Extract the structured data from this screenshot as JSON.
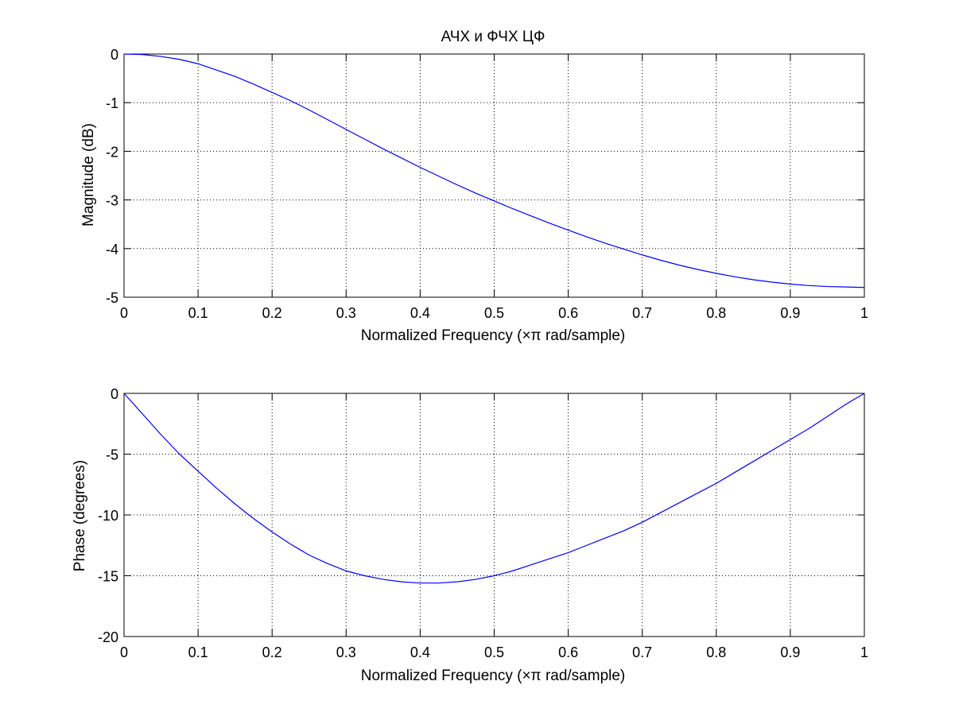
{
  "chart_data": [
    {
      "type": "line",
      "title": "АЧХ и ФЧХ ЦФ",
      "xlabel": "Normalized Frequency  (×π rad/sample)",
      "ylabel": "Magnitude (dB)",
      "xlim": [
        0,
        1
      ],
      "ylim": [
        -5,
        0
      ],
      "xticks": [
        0,
        0.1,
        0.2,
        0.3,
        0.4,
        0.5,
        0.6,
        0.7,
        0.8,
        0.9,
        1
      ],
      "xtick_labels": [
        "0",
        "0.1",
        "0.2",
        "0.3",
        "0.4",
        "0.5",
        "0.6",
        "0.7",
        "0.8",
        "0.9",
        "1"
      ],
      "yticks": [
        0,
        -1,
        -2,
        -3,
        -4,
        -5
      ],
      "ytick_labels": [
        "0",
        "-1",
        "-2",
        "-3",
        "-4",
        "-5"
      ],
      "grid": true,
      "color": "#0000ff",
      "series": [
        {
          "x": [
            0,
            0.025,
            0.05,
            0.075,
            0.1,
            0.125,
            0.15,
            0.175,
            0.2,
            0.225,
            0.25,
            0.275,
            0.3,
            0.325,
            0.35,
            0.375,
            0.4,
            0.425,
            0.45,
            0.475,
            0.5,
            0.525,
            0.55,
            0.575,
            0.6,
            0.625,
            0.65,
            0.675,
            0.7,
            0.725,
            0.75,
            0.775,
            0.8,
            0.825,
            0.85,
            0.875,
            0.9,
            0.925,
            0.95,
            0.975,
            1
          ],
          "values": [
            0,
            -0.01,
            -0.05,
            -0.11,
            -0.2,
            -0.33,
            -0.46,
            -0.62,
            -0.79,
            -0.96,
            -1.15,
            -1.35,
            -1.55,
            -1.75,
            -1.95,
            -2.14,
            -2.33,
            -2.51,
            -2.69,
            -2.86,
            -3.02,
            -3.18,
            -3.33,
            -3.48,
            -3.62,
            -3.76,
            -3.89,
            -4.01,
            -4.13,
            -4.24,
            -4.34,
            -4.43,
            -4.51,
            -4.58,
            -4.64,
            -4.69,
            -4.73,
            -4.76,
            -4.78,
            -4.79,
            -4.8
          ]
        }
      ]
    },
    {
      "type": "line",
      "title": "",
      "xlabel": "Normalized Frequency  (×π rad/sample)",
      "ylabel": "Phase (degrees)",
      "xlim": [
        0,
        1
      ],
      "ylim": [
        -20,
        0
      ],
      "xticks": [
        0,
        0.1,
        0.2,
        0.3,
        0.4,
        0.5,
        0.6,
        0.7,
        0.8,
        0.9,
        1
      ],
      "xtick_labels": [
        "0",
        "0.1",
        "0.2",
        "0.3",
        "0.4",
        "0.5",
        "0.6",
        "0.7",
        "0.8",
        "0.9",
        "1"
      ],
      "yticks": [
        0,
        -5,
        -10,
        -15,
        -20
      ],
      "ytick_labels": [
        "0",
        "-5",
        "-10",
        "-15",
        "-20"
      ],
      "grid": true,
      "color": "#0000ff",
      "series": [
        {
          "x": [
            0,
            0.025,
            0.05,
            0.075,
            0.1,
            0.125,
            0.15,
            0.175,
            0.2,
            0.225,
            0.25,
            0.275,
            0.3,
            0.325,
            0.35,
            0.375,
            0.4,
            0.425,
            0.45,
            0.475,
            0.5,
            0.525,
            0.55,
            0.575,
            0.6,
            0.625,
            0.65,
            0.675,
            0.7,
            0.725,
            0.75,
            0.775,
            0.8,
            0.825,
            0.85,
            0.875,
            0.9,
            0.925,
            0.95,
            0.975,
            1
          ],
          "values": [
            0,
            -1.7,
            -3.4,
            -5.0,
            -6.4,
            -7.8,
            -9.1,
            -10.3,
            -11.4,
            -12.4,
            -13.3,
            -14.0,
            -14.6,
            -15.0,
            -15.3,
            -15.5,
            -15.6,
            -15.6,
            -15.5,
            -15.3,
            -15.0,
            -14.6,
            -14.1,
            -13.6,
            -13.1,
            -12.5,
            -11.9,
            -11.3,
            -10.6,
            -9.8,
            -9.0,
            -8.2,
            -7.4,
            -6.5,
            -5.6,
            -4.7,
            -3.8,
            -2.9,
            -1.9,
            -0.9,
            0
          ]
        }
      ]
    }
  ]
}
